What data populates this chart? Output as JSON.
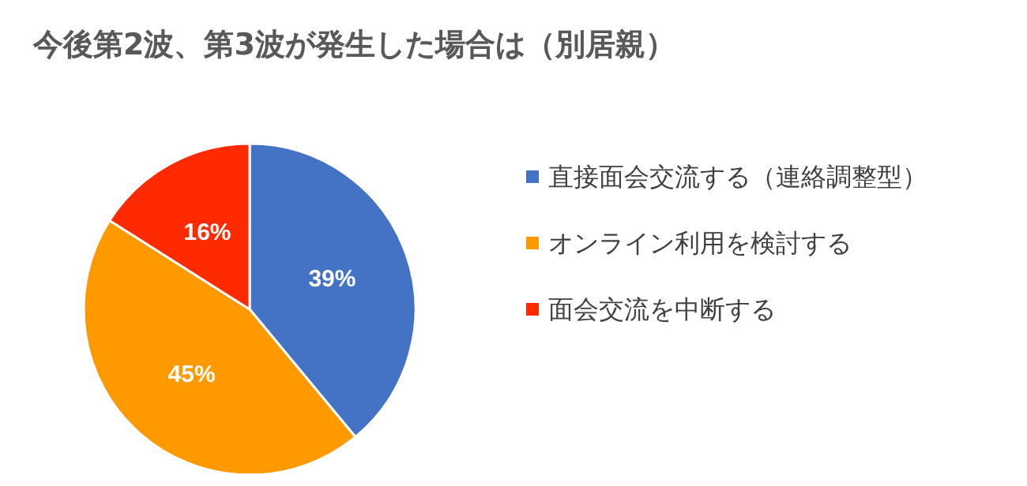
{
  "chart_data": {
    "type": "pie",
    "title": "今後第2波、第3波が発生した場合は（別居親）",
    "categories": [
      "直接面会交流する（連絡調整型）",
      "オンライン利用を検討する",
      "面会交流を中断する"
    ],
    "values": [
      39,
      45,
      16
    ],
    "colors": [
      "#4472c4",
      "#ff9900",
      "#ff2a00"
    ],
    "value_labels": [
      "39%",
      "45%",
      "16%"
    ],
    "legend": "right"
  }
}
